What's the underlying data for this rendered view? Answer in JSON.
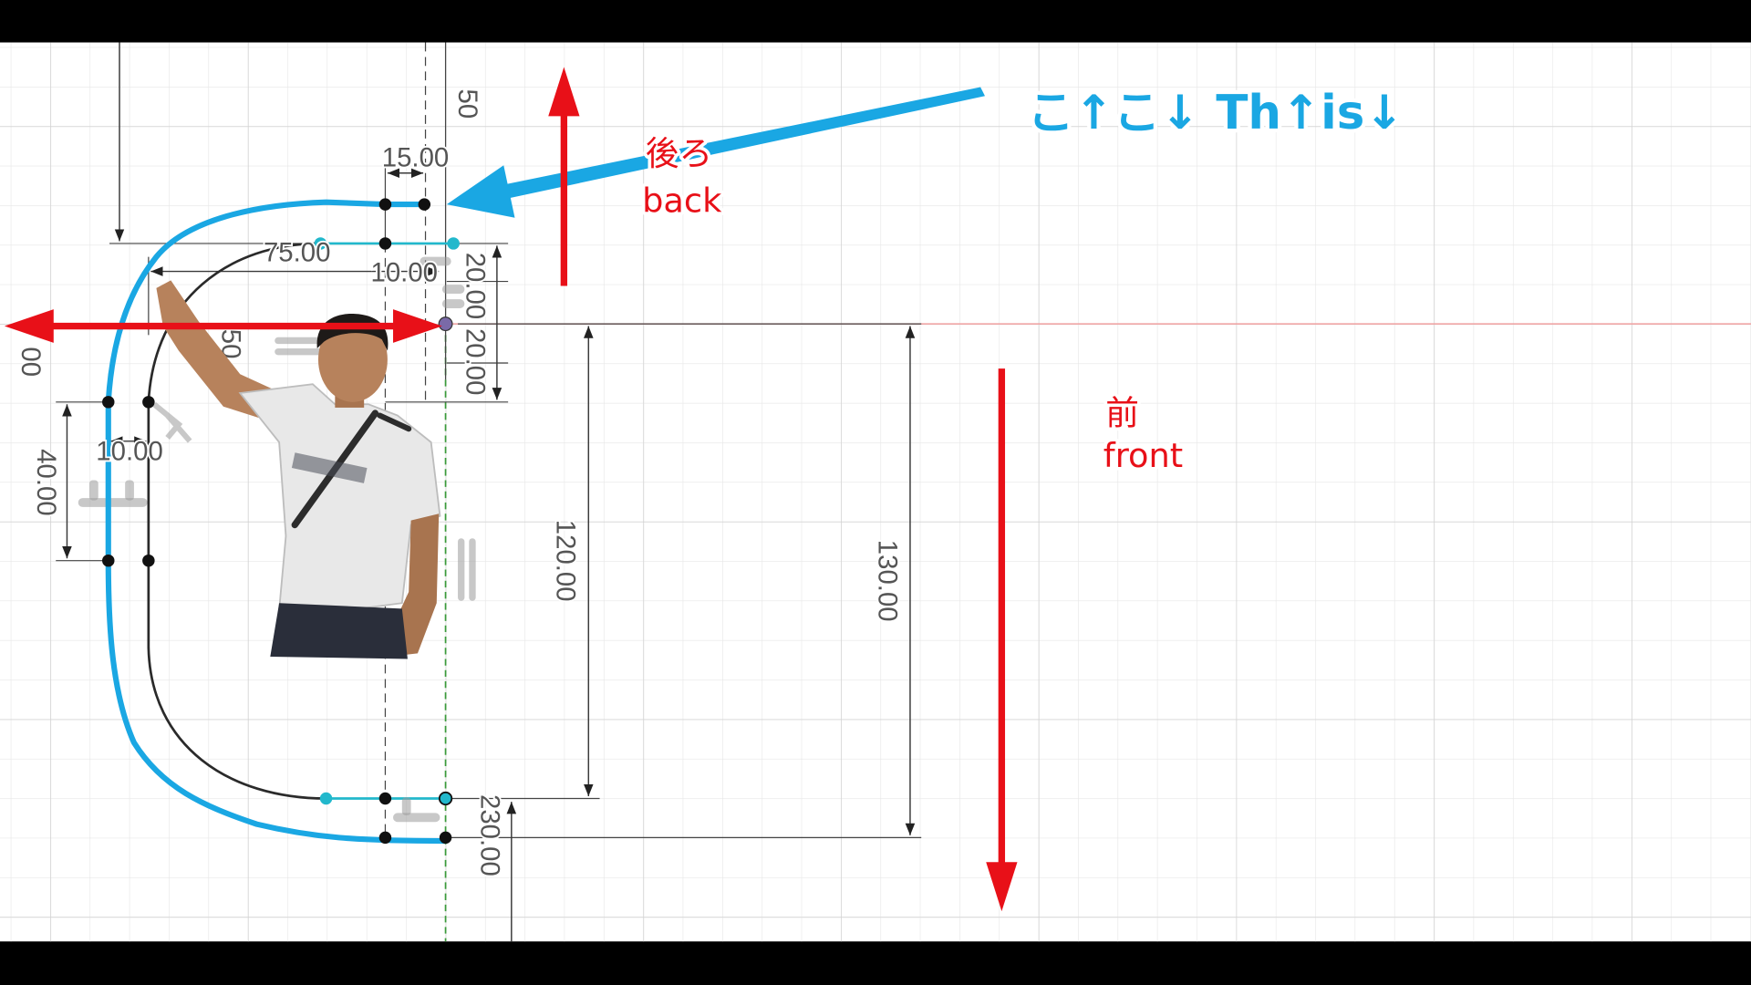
{
  "annotations": {
    "caption": "こ↑こ↓ Th↑is↓",
    "back_jp": "後ろ",
    "back_en": "back",
    "front_jp": "前",
    "front_en": "front"
  },
  "dimensions": {
    "top_50": "50",
    "top_15": "15.00",
    "top_75": "75.00",
    "top_10": "10.00",
    "right_20_a": "20.00",
    "right_20_b": "20.00",
    "mid_50": "50",
    "left_00": "00",
    "left_40": "40.00",
    "left_10": "10.00",
    "height_120": "120.00",
    "height_130": "130.00",
    "bottom_230": "230.00"
  },
  "icons": [
    "constraint-icon",
    "sketch-point-icon",
    "origin-icon",
    "arrow-icon"
  ],
  "colors": {
    "canvas": "#ffffff",
    "grid_minor": "#e6e6e6",
    "grid_major": "#d2d2d2",
    "sketch_line": "#2a2a2a",
    "selected_line": "#22b8cc",
    "axis_x": "#f0a0a0",
    "axis_y": "#3a9a3a",
    "annotation_blue": "#1aa7e3",
    "annotation_red": "#e81018",
    "dimension_text": "#555555",
    "letterbox": "#000000"
  }
}
